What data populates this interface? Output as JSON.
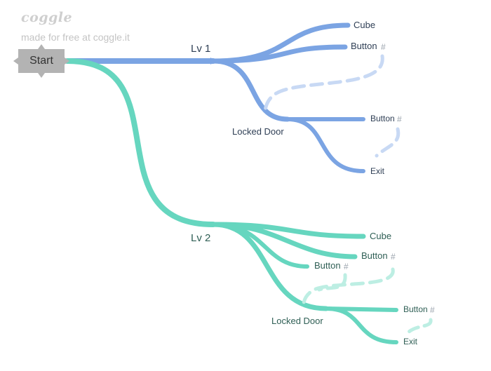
{
  "watermark": {
    "logo": "coggle",
    "tagline": "made for free at coggle.it"
  },
  "colors": {
    "blue": "#7ba4e3",
    "blue_light": "#c8d9f4",
    "teal": "#66d6bf",
    "teal_light": "#bdeee3",
    "root_fill": "#b3b3b3",
    "text_dark": "#2f3f55",
    "text_teal": "#2f5f55",
    "hash": "#9aa3ad"
  },
  "root": {
    "label": "Start"
  },
  "branches": {
    "lv1": {
      "label": "Lv 1",
      "cube": "Cube",
      "button": "Button",
      "button_hash": "#",
      "locked_door": "Locked Door",
      "ld_button": "Button",
      "ld_button_hash": "#",
      "ld_exit": "Exit"
    },
    "lv2": {
      "label": "Lv 2",
      "cube": "Cube",
      "button_a": "Button",
      "button_a_hash": "#",
      "button_b": "Button",
      "button_b_hash": "#",
      "locked_door": "Locked Door",
      "ld_button": "Button",
      "ld_button_hash": "#",
      "ld_exit": "Exit"
    }
  }
}
